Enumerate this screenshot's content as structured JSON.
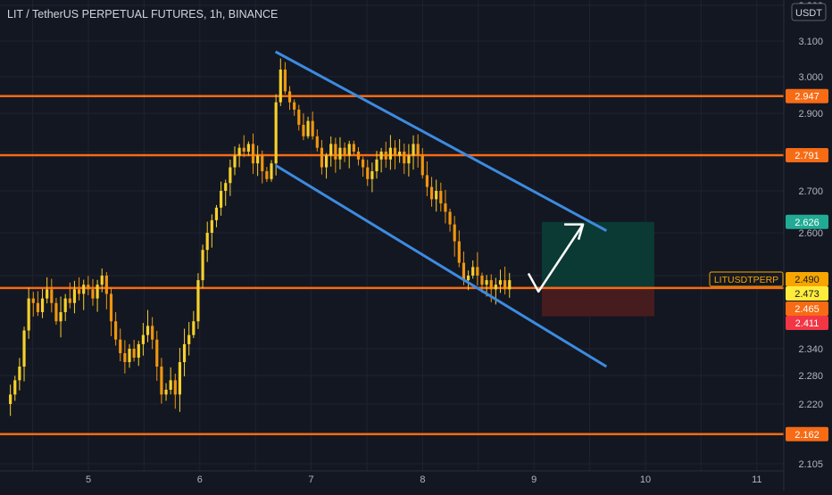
{
  "title": "LIT / TetherUS PERPETUAL FUTURES, 1h, BINANCE",
  "currency_badge": "USDT",
  "colors": {
    "background": "#131722",
    "grid": "#1f2330",
    "candle_up": "#f7d02c",
    "candle_down": "#f0960f",
    "level_line": "#f76b15",
    "channel": "#3d8be0",
    "arrow": "#ffffff",
    "target_zone": "#0b3b36",
    "stop_zone": "#4a1c1f",
    "axis_text": "#b2b5be",
    "badge_orange": "#f76b15",
    "badge_teal": "#22ab94",
    "badge_yellow": "#ffeb3b",
    "badge_red": "#f23645",
    "ticker_badge": "#f7a600"
  },
  "y_axis": {
    "tick_labels": [
      "3.200",
      "3.100",
      "3.000",
      "2.900",
      "2.800",
      "2.700",
      "2.600",
      "2.500",
      "2.340",
      "2.280",
      "2.220",
      "2.105"
    ]
  },
  "x_axis": {
    "tick_labels": [
      "5",
      "6",
      "7",
      "8",
      "9",
      "10",
      "11"
    ]
  },
  "chart_data": {
    "type": "candlestick",
    "title": "LIT / TetherUS PERPETUAL FUTURES, 1h, BINANCE",
    "x_unit": "day",
    "price_scale": {
      "labels": [
        "3.200",
        "3.100",
        "3.000",
        "2.900",
        "2.800",
        "2.700",
        "2.600",
        "2.500",
        "2.340",
        "2.280",
        "2.220",
        "2.105"
      ]
    },
    "x_ticks": [
      "5",
      "6",
      "7",
      "8",
      "9",
      "10",
      "11"
    ],
    "x_range": [
      4.28,
      11.55
    ],
    "candles_close": [
      2.24,
      2.27,
      2.3,
      2.38,
      2.45,
      2.44,
      2.42,
      2.45,
      2.47,
      2.44,
      2.4,
      2.42,
      2.45,
      2.44,
      2.47,
      2.46,
      2.48,
      2.47,
      2.45,
      2.48,
      2.5,
      2.46,
      2.4,
      2.36,
      2.33,
      2.31,
      2.34,
      2.32,
      2.35,
      2.37,
      2.39,
      2.36,
      2.3,
      2.24,
      2.25,
      2.27,
      2.24,
      2.31,
      2.35,
      2.37,
      2.4,
      2.49,
      2.56,
      2.6,
      2.63,
      2.66,
      2.7,
      2.72,
      2.76,
      2.79,
      2.81,
      2.8,
      2.82,
      2.77,
      2.79,
      2.75,
      2.73,
      2.77,
      2.93,
      3.02,
      2.96,
      2.93,
      2.91,
      2.87,
      2.84,
      2.88,
      2.84,
      2.81,
      2.76,
      2.79,
      2.82,
      2.78,
      2.81,
      2.79,
      2.82,
      2.8,
      2.78,
      2.76,
      2.73,
      2.75,
      2.78,
      2.8,
      2.78,
      2.81,
      2.79,
      2.8,
      2.77,
      2.79,
      2.82,
      2.79,
      2.74,
      2.71,
      2.68,
      2.7,
      2.67,
      2.65,
      2.62,
      2.58,
      2.53,
      2.49,
      2.5,
      2.52,
      2.5,
      2.48,
      2.49,
      2.47,
      2.48,
      2.49,
      2.47,
      2.49
    ],
    "horizontal_levels": [
      {
        "price": 2.947,
        "label": "2.947"
      },
      {
        "price": 2.791,
        "label": "2.791"
      },
      {
        "price": 2.473,
        "label": ""
      },
      {
        "price": 2.162,
        "label": "2.162"
      }
    ],
    "channel_upper": {
      "x": [
        6.68,
        9.65
      ],
      "y": [
        3.07,
        2.605
      ]
    },
    "channel_lower": {
      "x": [
        6.68,
        9.65
      ],
      "y": [
        2.765,
        2.3
      ]
    },
    "projection_arrow": {
      "x": [
        8.95,
        9.04,
        9.44
      ],
      "y": [
        2.505,
        2.465,
        2.62
      ]
    },
    "position": {
      "x_start": 9.07,
      "x_end": 10.08,
      "entry": 2.473,
      "target": 2.626,
      "stop": 2.411
    },
    "price_badges": [
      {
        "price": 2.947,
        "label": "2.947",
        "style": "orange"
      },
      {
        "price": 2.791,
        "label": "2.791",
        "style": "orange"
      },
      {
        "price": 2.626,
        "label": "2.626",
        "style": "teal"
      },
      {
        "price": 2.49,
        "label": "2.490",
        "style": "ticker",
        "ticker": "LITUSDTPERP"
      },
      {
        "price": 2.473,
        "label": "2.473",
        "style": "yellow"
      },
      {
        "price": 2.465,
        "label": "2.465",
        "style": "orange"
      },
      {
        "price": 2.411,
        "label": "2.411",
        "style": "red"
      },
      {
        "price": 2.162,
        "label": "2.162",
        "style": "orange"
      }
    ]
  }
}
